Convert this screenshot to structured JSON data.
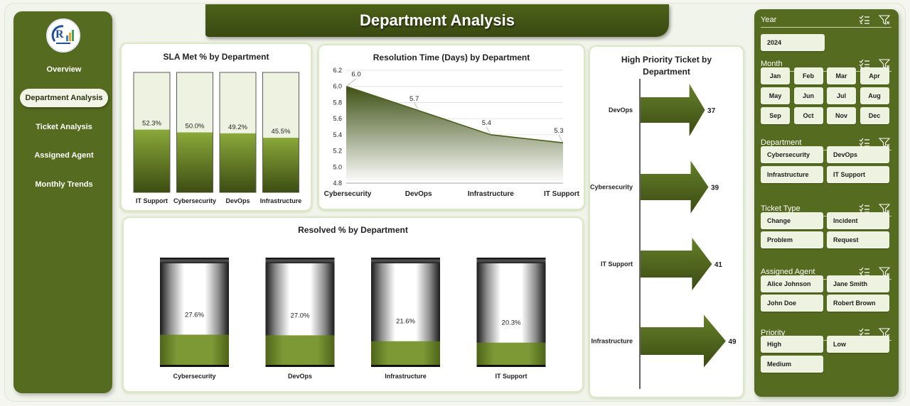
{
  "header": {
    "title": "Department Analysis"
  },
  "nav": {
    "items": [
      {
        "label": "Overview",
        "active": false
      },
      {
        "label": "Department Analysis",
        "active": true
      },
      {
        "label": "Ticket Analysis",
        "active": false
      },
      {
        "label": "Assigned Agent",
        "active": false
      },
      {
        "label": "Monthly Trends",
        "active": false
      }
    ]
  },
  "colors": {
    "accent": "#556b1f",
    "bar_top": "#8aa83a",
    "bar_bottom": "#3d4d12",
    "track": "#eef3e1",
    "resolved_fill": "#7a9434"
  },
  "chart_data": [
    {
      "type": "bar",
      "title": "SLA Met % by Department",
      "categories": [
        "IT Support",
        "Cybersecurity",
        "DevOps",
        "Infrastructure"
      ],
      "values": [
        52.3,
        50.0,
        49.2,
        45.5
      ],
      "data_labels": [
        "52.3%",
        "50.0%",
        "49.2%",
        "45.5%"
      ],
      "ylim": [
        0,
        100
      ]
    },
    {
      "type": "area",
      "title": "Resolution Time (Days) by Department",
      "categories": [
        "Cybersecurity",
        "DevOps",
        "Infrastructure",
        "IT Support"
      ],
      "values": [
        6.0,
        5.7,
        5.4,
        5.3
      ],
      "data_labels": [
        "6.0",
        "5.7",
        "5.4",
        "5.3"
      ],
      "ylim": [
        4.8,
        6.2
      ],
      "yticks": [
        "4.8",
        "5.0",
        "5.2",
        "5.4",
        "5.6",
        "5.8",
        "6.0",
        "6.2"
      ],
      "grid": true
    },
    {
      "type": "bar",
      "title": "Resolved % by Department",
      "categories": [
        "Cybersecurity",
        "DevOps",
        "Infrastructure",
        "IT Support"
      ],
      "values": [
        27.6,
        27.0,
        21.6,
        20.3
      ],
      "data_labels": [
        "27.6%",
        "27.0%",
        "21.6%",
        "20.3%"
      ],
      "ylim": [
        0,
        100
      ]
    },
    {
      "type": "bar",
      "title": "High Priority Ticket by Department",
      "categories": [
        "DevOps",
        "Cybersecurity",
        "IT Support",
        "Infrastructure"
      ],
      "values": [
        37,
        39,
        41,
        49
      ],
      "data_labels": [
        "37",
        "39",
        "41",
        "49"
      ],
      "orientation": "horizontal"
    }
  ],
  "filters": {
    "year": {
      "label": "Year",
      "options": [
        "2024"
      ]
    },
    "month": {
      "label": "Month",
      "options": [
        "Jan",
        "Feb",
        "Mar",
        "Apr",
        "May",
        "Jun",
        "Jul",
        "Aug",
        "Sep",
        "Oct",
        "Nov",
        "Dec"
      ]
    },
    "department": {
      "label": "Department",
      "options": [
        "Cybersecurity",
        "DevOps",
        "Infrastructure",
        "IT Support"
      ]
    },
    "ticket_type": {
      "label": "Ticket Type",
      "options": [
        "Change",
        "Incident",
        "Problem",
        "Request"
      ]
    },
    "assigned_agent": {
      "label": "Assigned Agent",
      "options": [
        "Alice Johnson",
        "Jane Smith",
        "John Doe",
        "Robert Brown"
      ]
    },
    "priority": {
      "label": "Priority",
      "options": [
        "High",
        "Low",
        "Medium"
      ]
    }
  }
}
